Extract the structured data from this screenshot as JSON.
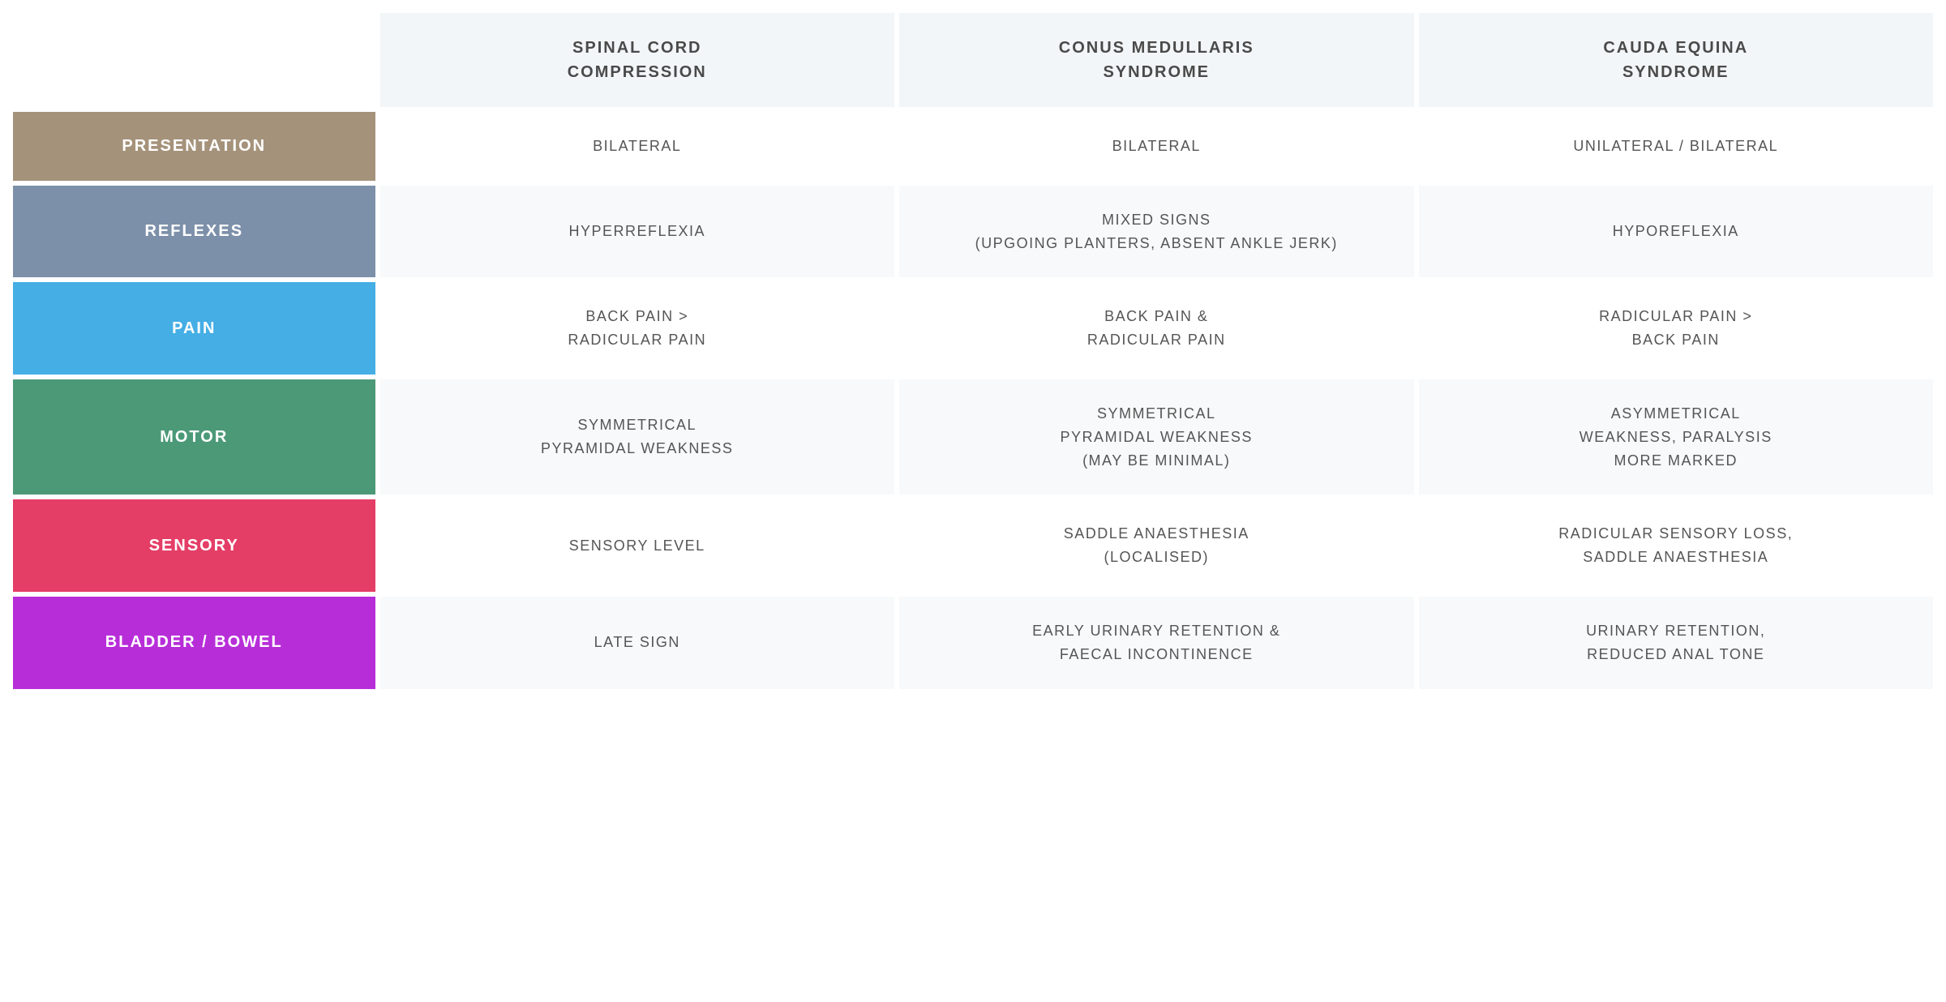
{
  "type": "table",
  "background_color": "#ffffff",
  "header_bg": "#f3f6f8",
  "alt_row_bg": "#f7f9fa",
  "row_bg": "#ffffff",
  "text_color": "#555555",
  "header_text_color": "#4a4a4a",
  "row_header_text_color": "#ffffff",
  "cell_fontsize": 18,
  "header_fontsize": 20,
  "row_header_fontsize": 20,
  "letter_spacing": 1.5,
  "columns": [
    {
      "lines": [
        "SPINAL CORD",
        "COMPRESSION"
      ]
    },
    {
      "lines": [
        "CONUS MEDULLARIS",
        "SYNDROME"
      ]
    },
    {
      "lines": [
        "CAUDA EQUINA",
        "SYNDROME"
      ]
    }
  ],
  "rows": [
    {
      "label": "PRESENTATION",
      "color": "#a5927a",
      "bg": "#ffffff",
      "cells": [
        {
          "lines": [
            "BILATERAL"
          ]
        },
        {
          "lines": [
            "BILATERAL"
          ]
        },
        {
          "lines": [
            "UNILATERAL / BILATERAL"
          ]
        }
      ]
    },
    {
      "label": "REFLEXES",
      "color": "#7d90aa",
      "bg": "#f7f9fa",
      "cells": [
        {
          "lines": [
            "HYPERREFLEXIA"
          ]
        },
        {
          "lines": [
            "MIXED SIGNS",
            "(UPGOING PLANTERS, ABSENT ANKLE JERK)"
          ]
        },
        {
          "lines": [
            "HYPOREFLEXIA"
          ]
        }
      ]
    },
    {
      "label": "PAIN",
      "color": "#45aee5",
      "bg": "#ffffff",
      "cells": [
        {
          "lines": [
            "BACK PAIN >",
            "RADICULAR PAIN"
          ]
        },
        {
          "lines": [
            "BACK PAIN &",
            "RADICULAR PAIN"
          ]
        },
        {
          "lines": [
            "RADICULAR PAIN >",
            "BACK PAIN"
          ]
        }
      ]
    },
    {
      "label": "MOTOR",
      "color": "#4c9978",
      "bg": "#f7f9fa",
      "cells": [
        {
          "lines": [
            "SYMMETRICAL",
            "PYRAMIDAL WEAKNESS"
          ]
        },
        {
          "lines": [
            "SYMMETRICAL",
            "PYRAMIDAL WEAKNESS",
            "(MAY BE MINIMAL)"
          ]
        },
        {
          "lines": [
            "ASYMMETRICAL",
            "WEAKNESS, PARALYSIS",
            "MORE MARKED"
          ]
        }
      ]
    },
    {
      "label": "SENSORY",
      "color": "#e43e67",
      "bg": "#ffffff",
      "cells": [
        {
          "lines": [
            "SENSORY LEVEL"
          ]
        },
        {
          "lines": [
            "SADDLE ANAESTHESIA",
            "(LOCALISED)"
          ]
        },
        {
          "lines": [
            "RADICULAR SENSORY LOSS,",
            "SADDLE ANAESTHESIA"
          ]
        }
      ]
    },
    {
      "label": "BLADDER / BOWEL",
      "color": "#b72ed9",
      "bg": "#f7f9fa",
      "cells": [
        {
          "lines": [
            "LATE SIGN"
          ]
        },
        {
          "lines": [
            "EARLY URINARY RETENTION &",
            "FAECAL INCONTINENCE"
          ]
        },
        {
          "lines": [
            "URINARY RETENTION,",
            "REDUCED ANAL TONE"
          ]
        }
      ]
    }
  ],
  "col_widths": [
    "19%",
    "27%",
    "27%",
    "27%"
  ]
}
